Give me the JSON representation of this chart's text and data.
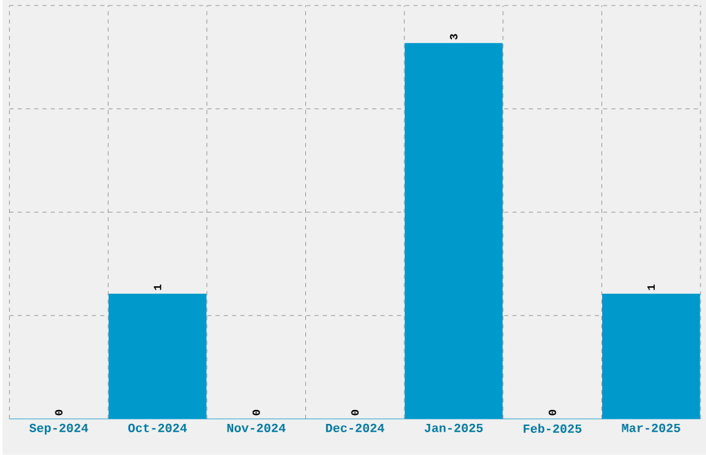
{
  "chart_data": {
    "type": "bar",
    "categories": [
      "Sep-2024",
      "Oct-2024",
      "Nov-2024",
      "Dec-2024",
      "Jan-2025",
      "Feb-2025",
      "Mar-2025"
    ],
    "values": [
      0,
      1,
      0,
      0,
      3,
      0,
      1
    ],
    "color": "#0099cc",
    "data_labels": true,
    "grid": true,
    "ylim": [
      0,
      3.3
    ],
    "yticks": [
      {
        "value": 0.825,
        "label": null
      },
      {
        "value": 1.65,
        "label": null
      },
      {
        "value": 2.475,
        "label": null
      },
      {
        "value": 3.3,
        "label": null
      }
    ],
    "tick_labels": "x"
  }
}
